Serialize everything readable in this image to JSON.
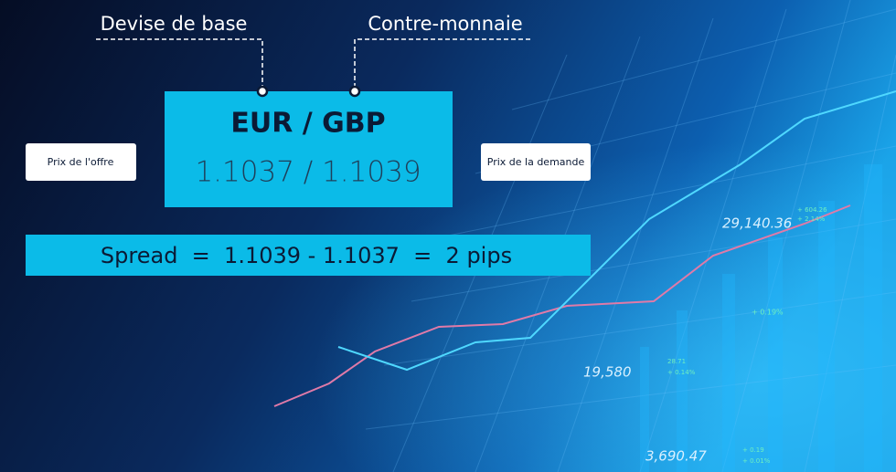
{
  "labels": {
    "base_currency": "Devise de base",
    "quote_currency": "Contre-monnaie"
  },
  "pair": {
    "title": "EUR / GBP",
    "quote": "1.1037 / 1.1039"
  },
  "bid_label": "Prix de l'offre",
  "ask_label": "Prix de la demande",
  "spread": "Spread  =  1.1039 - 1.1037  =  2 pips",
  "background_figures": [
    "29,140.36",
    "19,580",
    "3,690.47",
    "+ 0.19%",
    "+ 604.26",
    "+ 2.14%",
    "28.71",
    "+ 0.14%",
    "+ 0.19",
    "+ 0.01%"
  ]
}
